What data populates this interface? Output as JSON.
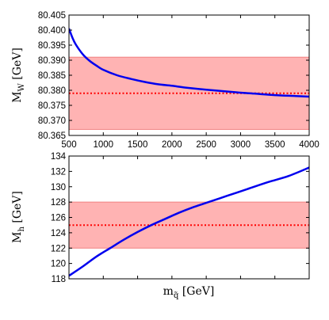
{
  "chart_data": [
    {
      "type": "line",
      "ylabel": "M",
      "ylabel_sub": "W",
      "ylabel_unit": "[GeV]",
      "xlim": [
        500,
        4000
      ],
      "ylim": [
        80.365,
        80.405
      ],
      "x_ticks": [
        500,
        1000,
        1500,
        2000,
        2500,
        3000,
        3500,
        4000
      ],
      "x_tick_labels": [
        "500",
        "1000",
        "1500",
        "2000",
        "2500",
        "3000",
        "3500",
        "4000"
      ],
      "y_ticks": [
        80.365,
        80.37,
        80.375,
        80.38,
        80.385,
        80.39,
        80.395,
        80.4,
        80.405
      ],
      "y_tick_labels": [
        "80.365",
        "80.370",
        "80.375",
        "80.380",
        "80.385",
        "80.390",
        "80.395",
        "80.400",
        "80.405"
      ],
      "band": {
        "low": 80.367,
        "high": 80.391,
        "color": "#ffb3b3",
        "edge": "#f08080"
      },
      "reference_line": {
        "y": 80.379,
        "color": "#ff0000"
      },
      "series": [
        {
          "color": "#0000ee",
          "points": [
            [
              500,
              80.4005
            ],
            [
              550,
              80.3975
            ],
            [
              600,
              80.3952
            ],
            [
              700,
              80.392
            ],
            [
              800,
              80.3898
            ],
            [
              900,
              80.3882
            ],
            [
              1000,
              80.3868
            ],
            [
              1200,
              80.385
            ],
            [
              1400,
              80.3838
            ],
            [
              1600,
              80.3828
            ],
            [
              1800,
              80.382
            ],
            [
              2000,
              80.3815
            ],
            [
              2200,
              80.3809
            ],
            [
              2500,
              80.3802
            ],
            [
              2800,
              80.3796
            ],
            [
              3000,
              80.3792
            ],
            [
              3200,
              80.3789
            ],
            [
              3500,
              80.3784
            ],
            [
              3800,
              80.3781
            ],
            [
              4000,
              80.3779
            ]
          ]
        }
      ]
    },
    {
      "type": "line",
      "ylabel": "M",
      "ylabel_sub": "h",
      "ylabel_unit": "[GeV]",
      "xlabel": "m",
      "xlabel_sub": "q̃",
      "xlabel_unit": "[GeV]",
      "xlim": [
        500,
        4000
      ],
      "ylim": [
        118,
        134
      ],
      "y_ticks": [
        118,
        120,
        122,
        124,
        126,
        128,
        130,
        132,
        134
      ],
      "y_tick_labels": [
        "118",
        "120",
        "122",
        "124",
        "126",
        "128",
        "130",
        "132",
        "134"
      ],
      "band": {
        "low": 122,
        "high": 128,
        "color": "#ffb3b3",
        "edge": "#f08080"
      },
      "reference_line": {
        "y": 125,
        "color": "#ff0000"
      },
      "series": [
        {
          "color": "#0000ee",
          "points": [
            [
              500,
              118.4
            ],
            [
              700,
              119.6
            ],
            [
              900,
              120.9
            ],
            [
              1100,
              122.0
            ],
            [
              1300,
              123.1
            ],
            [
              1500,
              124.1
            ],
            [
              1700,
              125.0
            ],
            [
              1900,
              125.8
            ],
            [
              2100,
              126.6
            ],
            [
              2300,
              127.3
            ],
            [
              2500,
              127.9
            ],
            [
              2800,
              128.8
            ],
            [
              3100,
              129.7
            ],
            [
              3400,
              130.6
            ],
            [
              3700,
              131.4
            ],
            [
              4000,
              132.5
            ]
          ]
        }
      ]
    }
  ]
}
